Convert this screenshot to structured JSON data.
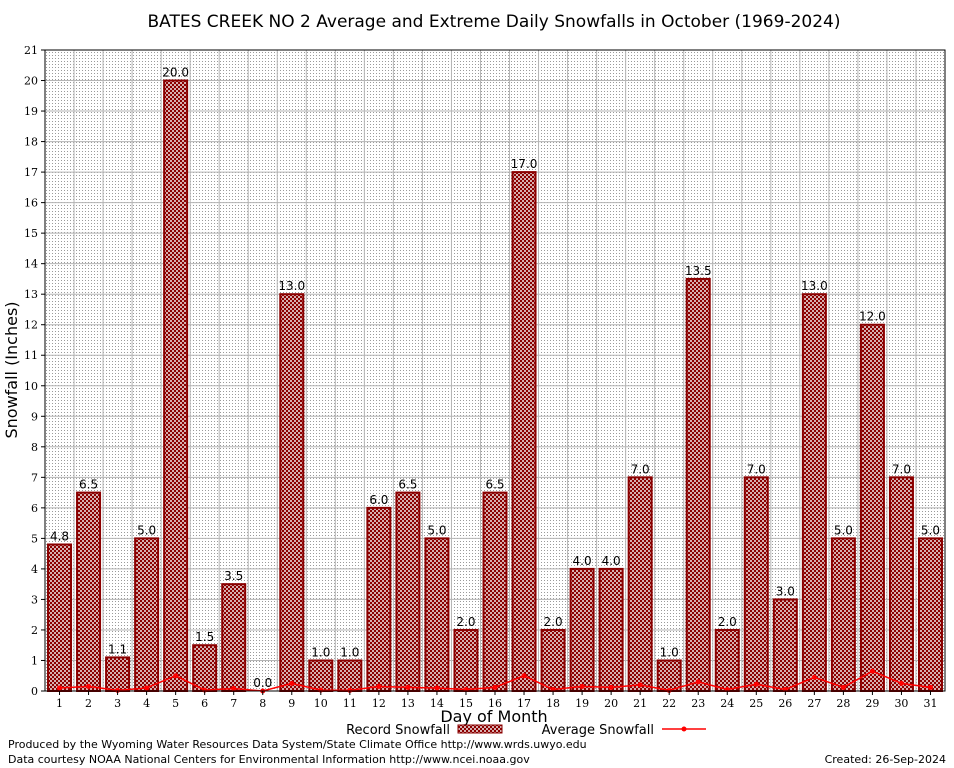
{
  "chart_data": {
    "type": "bar",
    "title": "BATES CREEK NO 2 Average and Extreme Daily Snowfalls in October (1969-2024)",
    "xlabel": "Day of Month",
    "ylabel": "Snowfall (Inches)",
    "ylim": [
      0,
      21
    ],
    "yticks": [
      "0",
      "1",
      "2",
      "3",
      "4",
      "5",
      "6",
      "7",
      "8",
      "9",
      "10",
      "11",
      "12",
      "13",
      "14",
      "15",
      "16",
      "17",
      "18",
      "19",
      "20",
      "21"
    ],
    "categories": [
      "1",
      "2",
      "3",
      "4",
      "5",
      "6",
      "7",
      "8",
      "9",
      "10",
      "11",
      "12",
      "13",
      "14",
      "15",
      "16",
      "17",
      "18",
      "19",
      "20",
      "21",
      "22",
      "23",
      "24",
      "25",
      "26",
      "27",
      "28",
      "29",
      "30",
      "31"
    ],
    "series": [
      {
        "name": "Record Snowfall",
        "kind": "bar",
        "values": [
          4.8,
          6.5,
          1.1,
          5.0,
          20.0,
          1.5,
          3.5,
          0.0,
          13.0,
          1.0,
          1.0,
          6.0,
          6.5,
          5.0,
          2.0,
          6.5,
          17.0,
          2.0,
          4.0,
          4.0,
          7.0,
          1.0,
          13.5,
          2.0,
          7.0,
          3.0,
          13.0,
          5.0,
          12.0,
          7.0,
          5.0
        ],
        "labels": [
          "4.8",
          "6.5",
          "1.1",
          "5.0",
          "20.0",
          "1.5",
          "3.5",
          "0.0",
          "13.0",
          "1.0",
          "1.0",
          "6.0",
          "6.5",
          "5.0",
          "2.0",
          "6.5",
          "17.0",
          "2.0",
          "4.0",
          "4.0",
          "7.0",
          "1.0",
          "13.5",
          "2.0",
          "7.0",
          "3.0",
          "13.0",
          "5.0",
          "12.0",
          "7.0",
          "5.0"
        ],
        "color": "#8b0000"
      },
      {
        "name": "Average Snowfall",
        "kind": "line",
        "values": [
          0.1,
          0.15,
          0.02,
          0.1,
          0.5,
          0.03,
          0.08,
          0.0,
          0.25,
          0.03,
          0.02,
          0.15,
          0.12,
          0.1,
          0.05,
          0.12,
          0.5,
          0.05,
          0.15,
          0.12,
          0.2,
          0.02,
          0.3,
          0.05,
          0.22,
          0.05,
          0.45,
          0.12,
          0.65,
          0.25,
          0.12
        ],
        "color": "#ff0000"
      }
    ],
    "grid": true,
    "legend": "bottom-center"
  },
  "footer": {
    "produced_by": "Produced by the Wyoming Water Resources Data System/State Climate Office http://www.wrds.uwyo.edu",
    "courtesy": "Data courtesy NOAA National Centers for Environmental Information http://www.ncei.noaa.gov",
    "created": "Created:  26-Sep-2024"
  }
}
